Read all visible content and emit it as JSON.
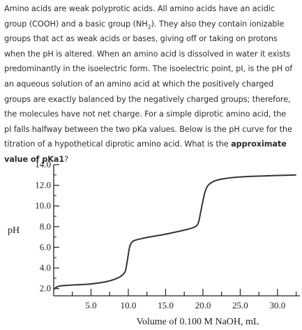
{
  "question": {
    "line1": "Amino acids are weak polyprotic acids.  All amino acids have an acidic",
    "line2_pre": "group (COOH) and a basic group (NH",
    "line2_sub": "2",
    "line2_post": ").  They also they contain ionizable",
    "line3": "groups that act as weak acids or bases, giving off or taking on protons",
    "line4": "when the pH is altered. When an amino acid is dissolved in water it exists",
    "line5": "predominantly in the isoelectric form. The isoelectric point, pI, is the pH of",
    "line6": "an aqueous solution of an amino acid at which the positively charged",
    "line7": "groups are exactly balanced by the negatively charged groups; therefore,",
    "line8": "the molecules have not net charge.   For a simple diprotic amino acid, the",
    "line9": "pI falls halfway between the two pKa values. Below is the pH curve for the",
    "line10_pre": "titration of a hypothetical diprotic amino acid.  What is the ",
    "line10_bold": "approximate",
    "line11_bold": "value of pKa1",
    "line11_post": "?"
  },
  "chart_data": {
    "type": "line",
    "title": "",
    "xlabel": "Volume of 0.100 M NaOH, mL",
    "ylabel": "pH",
    "xlim": [
      0,
      33
    ],
    "ylim": [
      1.3,
      14.0
    ],
    "x_ticks": [
      {
        "value": 5,
        "label": "5.0"
      },
      {
        "value": 10,
        "label": "10.0"
      },
      {
        "value": 15,
        "label": "15.0"
      },
      {
        "value": 20,
        "label": "20.0"
      },
      {
        "value": 25,
        "label": "25.0"
      },
      {
        "value": 30,
        "label": "30.0"
      }
    ],
    "y_ticks": [
      {
        "value": 2.0,
        "label": "2.0"
      },
      {
        "value": 4.0,
        "label": "4.0"
      },
      {
        "value": 6.0,
        "label": "6.0"
      },
      {
        "value": 8.0,
        "label": "8.0"
      },
      {
        "value": 10.0,
        "label": "10.0"
      },
      {
        "value": 12.0,
        "label": "12.0"
      },
      {
        "value": 14.0,
        "label": "14.0"
      }
    ],
    "series": [
      {
        "color": "#333333",
        "points": [
          [
            0.0,
            1.9
          ],
          [
            0.3,
            2.1
          ],
          [
            0.8,
            2.25
          ],
          [
            2.0,
            2.32
          ],
          [
            3.5,
            2.38
          ],
          [
            5.0,
            2.45
          ],
          [
            6.5,
            2.6
          ],
          [
            7.5,
            2.75
          ],
          [
            8.5,
            3.0
          ],
          [
            9.2,
            3.3
          ],
          [
            9.6,
            3.7
          ],
          [
            9.8,
            4.4
          ],
          [
            10.0,
            5.3
          ],
          [
            10.2,
            6.1
          ],
          [
            10.5,
            6.5
          ],
          [
            11.0,
            6.7
          ],
          [
            12.5,
            6.95
          ],
          [
            14.5,
            7.2
          ],
          [
            16.5,
            7.5
          ],
          [
            18.0,
            7.75
          ],
          [
            19.0,
            8.0
          ],
          [
            19.4,
            8.4
          ],
          [
            19.7,
            9.4
          ],
          [
            20.0,
            10.5
          ],
          [
            20.3,
            11.4
          ],
          [
            20.7,
            12.0
          ],
          [
            21.5,
            12.4
          ],
          [
            22.5,
            12.6
          ],
          [
            24.0,
            12.75
          ],
          [
            26.0,
            12.85
          ],
          [
            28.0,
            12.9
          ],
          [
            30.0,
            12.95
          ],
          [
            32.5,
            13.0
          ]
        ]
      }
    ]
  }
}
